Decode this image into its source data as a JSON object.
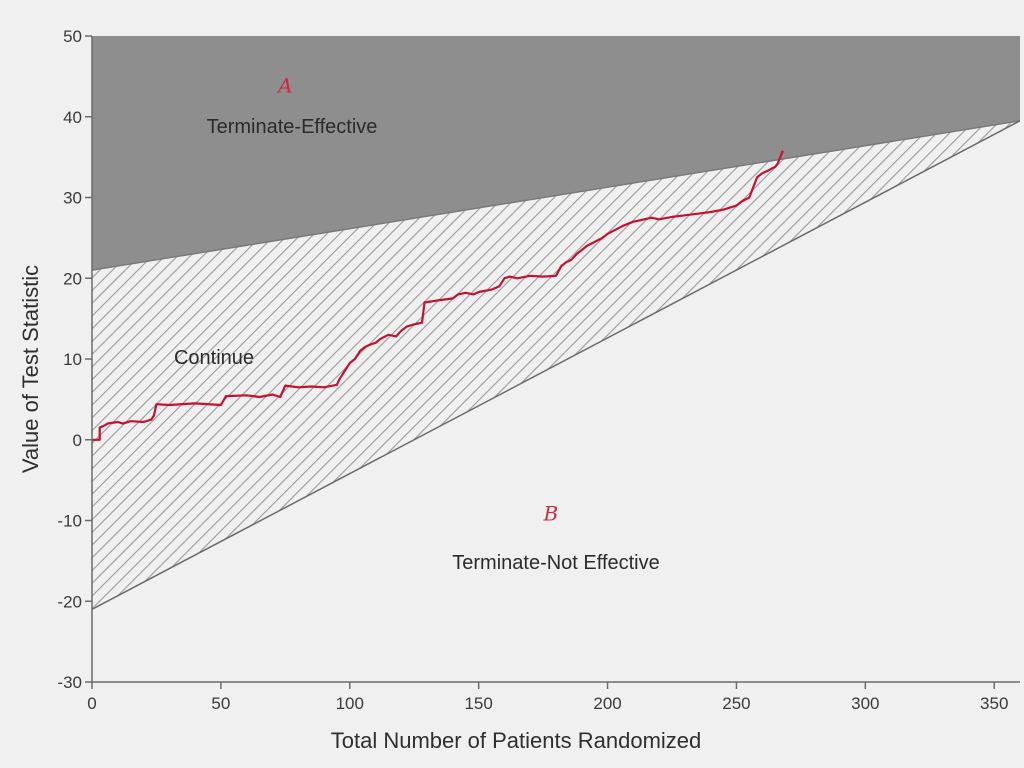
{
  "chart_data": {
    "type": "line",
    "title": "",
    "xlabel": "Total Number of Patients Randomized",
    "ylabel": "Value of Test Statistic",
    "xlim": [
      0,
      360
    ],
    "ylim": [
      -30,
      50
    ],
    "xticks": [
      0,
      50,
      100,
      150,
      200,
      250,
      300,
      350
    ],
    "yticks": [
      -30,
      -20,
      -10,
      0,
      10,
      20,
      30,
      40,
      50
    ],
    "grid": false,
    "boundaries": {
      "upper": {
        "x": [
          0,
          360
        ],
        "y": [
          21,
          39.5
        ]
      },
      "lower": {
        "x": [
          0,
          360
        ],
        "y": [
          -21,
          39.5
        ]
      }
    },
    "regions": [
      {
        "key": "upper",
        "label": "Terminate-Effective",
        "fill": "#8e8e8e",
        "pattern": "solid"
      },
      {
        "key": "middle",
        "label": "Continue",
        "fill": "#9a9a9a",
        "pattern": "diagonal-hatch"
      },
      {
        "key": "lower",
        "label": "Terminate-Not Effective",
        "fill": "#f1f0f0",
        "pattern": "none"
      }
    ],
    "annotations": [
      {
        "text": "A",
        "x": 75,
        "y": 43,
        "color": "#d0283f"
      },
      {
        "text": "B",
        "x": 178,
        "y": -10,
        "color": "#d0283f"
      }
    ],
    "series": [
      {
        "color": "#c8102e",
        "x": [
          0,
          3,
          3,
          5,
          6,
          10,
          12,
          15,
          20,
          23,
          24,
          25,
          30,
          40,
          50,
          52,
          60,
          65,
          70,
          73,
          75,
          80,
          85,
          90,
          95,
          96,
          97,
          98,
          99,
          100,
          102,
          103,
          104,
          106,
          108,
          110,
          112,
          115,
          118,
          120,
          122,
          125,
          128,
          129,
          135,
          140,
          142,
          145,
          148,
          150,
          155,
          158,
          160,
          162,
          165,
          170,
          175,
          180,
          182,
          184,
          186,
          188,
          190,
          192,
          195,
          198,
          200,
          203,
          206,
          210,
          213,
          217,
          220,
          225,
          230,
          235,
          240,
          245,
          250,
          252,
          255,
          258,
          260,
          262,
          265,
          266,
          267,
          268
        ],
        "y": [
          0,
          0,
          1.5,
          1.8,
          2.0,
          2.2,
          2.0,
          2.3,
          2.2,
          2.5,
          3.0,
          4.4,
          4.3,
          4.5,
          4.3,
          5.4,
          5.5,
          5.3,
          5.6,
          5.3,
          6.7,
          6.5,
          6.6,
          6.5,
          6.8,
          7.5,
          8.0,
          8.5,
          9.0,
          9.5,
          10.0,
          10.5,
          11.0,
          11.5,
          11.8,
          12.0,
          12.5,
          13.0,
          12.8,
          13.5,
          14.0,
          14.3,
          14.5,
          17.0,
          17.3,
          17.5,
          18.0,
          18.2,
          18.0,
          18.3,
          18.6,
          19.0,
          20.0,
          20.2,
          20.0,
          20.3,
          20.2,
          20.3,
          21.5,
          22.0,
          22.3,
          23.0,
          23.5,
          24.0,
          24.5,
          25.0,
          25.5,
          26.0,
          26.5,
          27.0,
          27.2,
          27.5,
          27.3,
          27.6,
          27.8,
          28.0,
          28.2,
          28.5,
          29.0,
          29.5,
          30.0,
          32.5,
          33.0,
          33.3,
          33.8,
          34.2,
          35.0,
          35.8
        ]
      }
    ]
  }
}
